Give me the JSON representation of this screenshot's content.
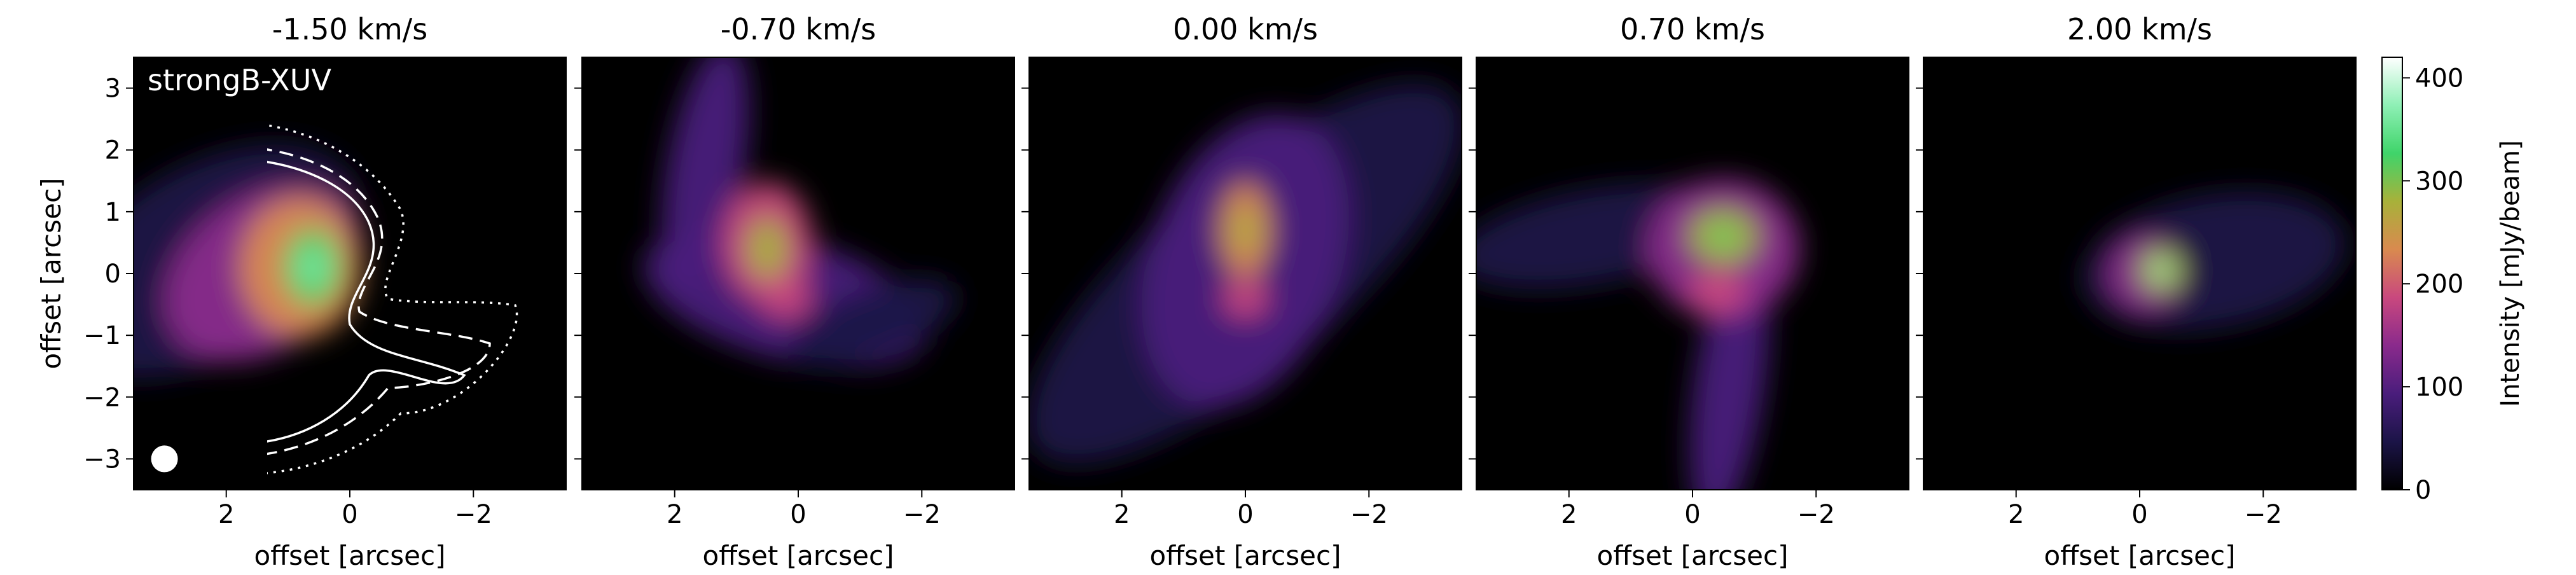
{
  "figure_label": "strongB-XUV",
  "chart_data": {
    "type": "heatmap",
    "axes": {
      "xlabel": "offset [arcsec]",
      "ylabel": "offset [arcsec]",
      "xlim": [
        3.5,
        -3.5
      ],
      "ylim": [
        -3.5,
        3.5
      ],
      "xticks": [
        2,
        0,
        -2
      ],
      "xtick_labels": [
        "2",
        "0",
        "−2"
      ],
      "yticks": [
        3,
        2,
        1,
        0,
        -1,
        -2,
        -3
      ],
      "ytick_labels": [
        "3",
        "2",
        "1",
        "0",
        "−1",
        "−2",
        "−3"
      ]
    },
    "colorbar": {
      "label": "Intensity [mJy/beam]",
      "min": 0,
      "max": 420,
      "ticks": [
        0,
        100,
        200,
        300,
        400
      ],
      "tick_labels": [
        "0",
        "100",
        "200",
        "300",
        "400"
      ],
      "colormap": "cubehelix",
      "stops": [
        "#000000",
        "#1b1447",
        "#4a1d7c",
        "#8a2a8c",
        "#c9487e",
        "#d98a4f",
        "#a8b13a",
        "#3fd46a",
        "#8ef0b5",
        "#ffffff"
      ]
    },
    "beam": {
      "x": 3.0,
      "y": -3.0
    },
    "channels": [
      {
        "title": "-1.50 km/s"
      },
      {
        "title": "-0.70 km/s"
      },
      {
        "title": "0.00 km/s"
      },
      {
        "title": "0.70 km/s"
      },
      {
        "title": "2.00 km/s"
      }
    ]
  }
}
